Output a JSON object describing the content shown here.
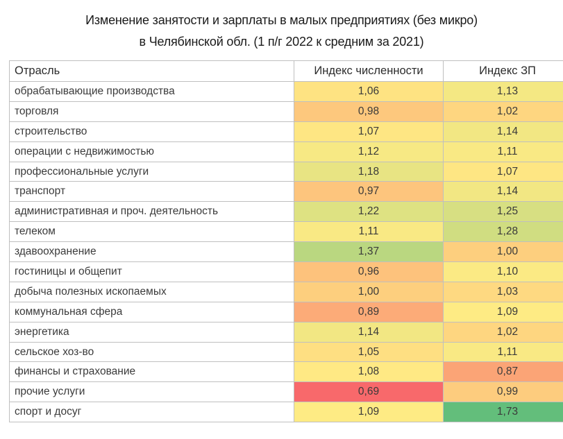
{
  "page": {
    "title_line1": "Изменение занятости и зарплаты в малых предприятиях (без микро)",
    "title_line2": "в Челябинской обл. (1 п/г 2022 к средним за 2021)"
  },
  "table": {
    "headers": {
      "industry": "Отрасль",
      "headcount_index": "Индекс численности",
      "salary_index": "Индекс ЗП"
    },
    "rows": [
      {
        "industry": "обрабатывающие производства",
        "headcount": "1,06",
        "headcount_bg": "#FEE382",
        "salary": "1,13",
        "salary_bg": "#F4E883"
      },
      {
        "industry": "торговля",
        "headcount": "0,98",
        "headcount_bg": "#FDC87D",
        "salary": "1,02",
        "salary_bg": "#FED680"
      },
      {
        "industry": "строительство",
        "headcount": "1,07",
        "headcount_bg": "#FEE683",
        "salary": "1,14",
        "salary_bg": "#F2E783"
      },
      {
        "industry": "операции с недвижимостью",
        "headcount": "1,12",
        "headcount_bg": "#F7E984",
        "salary": "1,11",
        "salary_bg": "#F9E984"
      },
      {
        "industry": "профессиональные услуги",
        "headcount": "1,18",
        "headcount_bg": "#E8E483",
        "salary": "1,07",
        "salary_bg": "#FEE683"
      },
      {
        "industry": "транспорт",
        "headcount": "0,97",
        "headcount_bg": "#FDC57D",
        "salary": "1,14",
        "salary_bg": "#F2E783"
      },
      {
        "industry": "административная и проч. деятельность",
        "headcount": "1,22",
        "headcount_bg": "#DEE282",
        "salary": "1,25",
        "salary_bg": "#D7DF82"
      },
      {
        "industry": "телеком",
        "headcount": "1,11",
        "headcount_bg": "#F9E984",
        "salary": "1,28",
        "salary_bg": "#D0DD81"
      },
      {
        "industry": "здавоохранение",
        "headcount": "1,37",
        "headcount_bg": "#BAD780",
        "salary": "1,00",
        "salary_bg": "#FDCF7E"
      },
      {
        "industry": "гостиницы и общепит",
        "headcount": "0,96",
        "headcount_bg": "#FDC27C",
        "salary": "1,10",
        "salary_bg": "#FBEA84"
      },
      {
        "industry": "добыча полезных ископаемых",
        "headcount": "1,00",
        "headcount_bg": "#FDCF7E",
        "salary": "1,03",
        "salary_bg": "#FED981"
      },
      {
        "industry": "коммунальная сфера",
        "headcount": "0,89",
        "headcount_bg": "#FCAB78",
        "salary": "1,09",
        "salary_bg": "#FEEB84"
      },
      {
        "industry": "энергетика",
        "headcount": "1,14",
        "headcount_bg": "#F2E783",
        "salary": "1,02",
        "salary_bg": "#FED680"
      },
      {
        "industry": "сельское хоз-во",
        "headcount": "1,05",
        "headcount_bg": "#FEDF82",
        "salary": "1,11",
        "salary_bg": "#F9E984"
      },
      {
        "industry": "финансы и страхование",
        "headcount": "1,08",
        "headcount_bg": "#FFE984",
        "salary": "0,87",
        "salary_bg": "#FBA476"
      },
      {
        "industry": "прочие услуги",
        "headcount": "0,69",
        "headcount_bg": "#F8696B",
        "salary": "0,99",
        "salary_bg": "#FDCC7E"
      },
      {
        "industry": "спорт и досуг",
        "headcount": "1,09",
        "headcount_bg": "#FEEB84",
        "salary": "1,73",
        "salary_bg": "#63BE7B"
      }
    ]
  },
  "colors": {
    "scale_min_red": "#F8696B",
    "scale_mid_yellow": "#FFEB84",
    "scale_max_green": "#63BE7B",
    "grid_border": "#BFBFBF",
    "cell_text": "#3A3A3A",
    "title_text": "#1A1A1A",
    "background": "#FFFFFF"
  },
  "chart_data": {
    "type": "table",
    "title": "Изменение занятости и зарплаты в малых предприятиях (без микро) в Челябинской обл. (1 п/г 2022 к средним за 2021)",
    "categories": [
      "обрабатывающие производства",
      "торговля",
      "строительство",
      "операции с недвижимостью",
      "профессиональные услуги",
      "транспорт",
      "административная и проч. деятельность",
      "телеком",
      "здавоохранение",
      "гостиницы и общепит",
      "добыча полезных ископаемых",
      "коммунальная сфера",
      "энергетика",
      "сельское хоз-во",
      "финансы и страхование",
      "прочие услуги",
      "спорт и досуг"
    ],
    "series": [
      {
        "name": "Индекс численности",
        "values": [
          1.06,
          0.98,
          1.07,
          1.12,
          1.18,
          0.97,
          1.22,
          1.11,
          1.37,
          0.96,
          1.0,
          0.89,
          1.14,
          1.05,
          1.08,
          0.69,
          1.09
        ]
      },
      {
        "name": "Индекс ЗП",
        "values": [
          1.13,
          1.02,
          1.14,
          1.11,
          1.07,
          1.14,
          1.25,
          1.28,
          1.0,
          1.1,
          1.03,
          1.09,
          1.02,
          1.11,
          0.87,
          0.99,
          1.73
        ]
      }
    ],
    "layout_hints": {
      "heatmap_color_scale": {
        "min_color": "#F8696B",
        "mid_color": "#FFEB84",
        "max_color": "#63BE7B",
        "min_value": 0.69,
        "max_value": 1.73
      },
      "first_column_background": "#FFFFFF",
      "grid": true
    }
  }
}
